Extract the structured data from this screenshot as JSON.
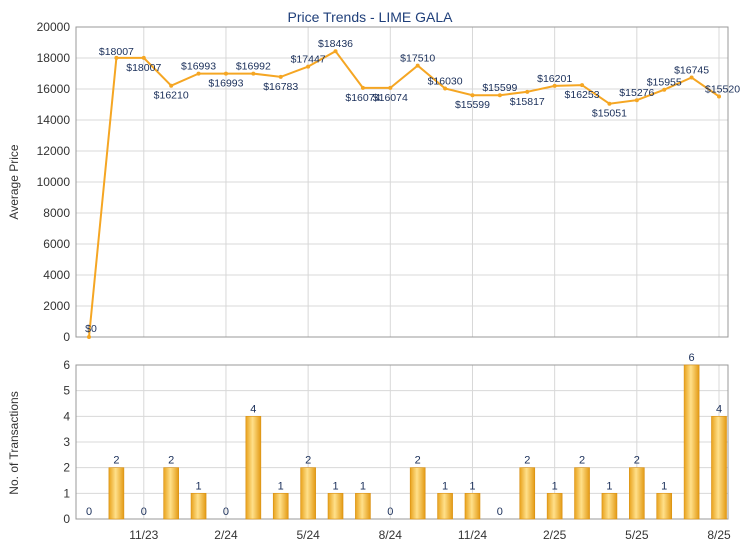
{
  "chart_data": [
    {
      "type": "line",
      "title": "Price Trends - LIME GALA",
      "ylabel": "Average Price",
      "ylim": [
        0,
        20000
      ],
      "yticks": [
        0,
        2000,
        4000,
        6000,
        8000,
        10000,
        12000,
        14000,
        16000,
        18000,
        20000
      ],
      "series": [
        {
          "values": [
            0,
            18007,
            18007,
            16210,
            16993,
            16993,
            16992,
            16783,
            17447,
            18436,
            16074,
            16074,
            17510,
            16030,
            15599,
            15599,
            15817,
            16201,
            16253,
            15051,
            15276,
            15955,
            16745,
            15520
          ],
          "labels": [
            "$0",
            "$18007",
            "$18007",
            "$16210",
            "$16993",
            "$16993",
            "$16992",
            "$16783",
            "$17447",
            "$18436",
            "$16074",
            "$16074",
            "$17510",
            "$16030",
            "$15599",
            "$15599",
            "$15817",
            "$16201",
            "$16253",
            "$15051",
            "$15276",
            "$15955",
            "$16745",
            "$15520"
          ]
        }
      ],
      "grid": true,
      "color": "#f5a623"
    },
    {
      "type": "bar",
      "ylabel": "No. of Transactions",
      "ylim": [
        0,
        6
      ],
      "yticks": [
        0,
        1,
        2,
        3,
        4,
        5,
        6
      ],
      "values": [
        0,
        2,
        0,
        2,
        1,
        0,
        4,
        1,
        2,
        1,
        1,
        0,
        2,
        1,
        1,
        0,
        2,
        1,
        2,
        1,
        2,
        1,
        6,
        4
      ],
      "xtick_labels": [
        {
          "index": 2,
          "label": "11/23"
        },
        {
          "index": 5,
          "label": "2/24"
        },
        {
          "index": 8,
          "label": "5/24"
        },
        {
          "index": 11,
          "label": "8/24"
        },
        {
          "index": 14,
          "label": "11/24"
        },
        {
          "index": 17,
          "label": "2/25"
        },
        {
          "index": 20,
          "label": "5/25"
        },
        {
          "index": 23,
          "label": "8/25"
        }
      ],
      "grid": true,
      "color": "#f5a623"
    }
  ]
}
